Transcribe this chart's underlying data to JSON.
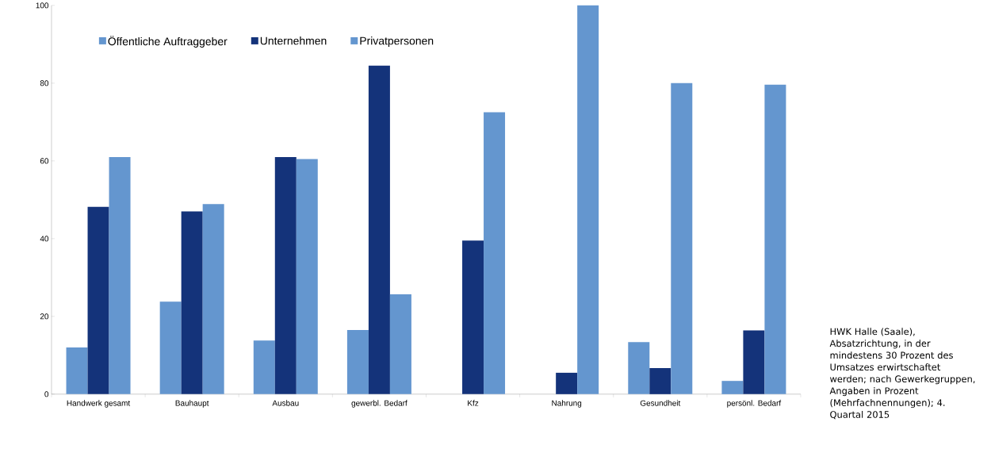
{
  "chart_data": {
    "type": "bar",
    "categories": [
      "Handwerk gesamt",
      "Bauhaupt",
      "Ausbau",
      "gewerbl. Bedarf",
      "Kfz",
      "Nahrung",
      "Gesundheit",
      "persönl. Bedarf"
    ],
    "series": [
      {
        "name": "Öffentliche Auftraggeber",
        "color": "#6496cf",
        "values": [
          12,
          23.8,
          13.8,
          16.5,
          null,
          null,
          13.4,
          3.4
        ]
      },
      {
        "name": "Unternehmen",
        "color": "#14337a",
        "values": [
          48.2,
          47,
          61,
          84.5,
          39.5,
          5.5,
          6.7,
          16.4
        ]
      },
      {
        "name": "Privatpersonen",
        "color": "#6496cf",
        "values": [
          61,
          48.9,
          60.5,
          25.7,
          72.5,
          100,
          80,
          79.6
        ]
      }
    ],
    "ylim": [
      0,
      100
    ],
    "yticks": [
      0,
      20,
      40,
      60,
      80,
      100
    ],
    "grid": false,
    "legend": "top left",
    "annotations": [
      "HWK Halle (Saale), Absatzrichtung, in der mindestens 30 Prozent des Umsatzes erwirtschaftet werden; nach Gewerkegruppen, Angaben in Prozent (Mehrfachnennungen); 4. Quartal 2015"
    ]
  }
}
